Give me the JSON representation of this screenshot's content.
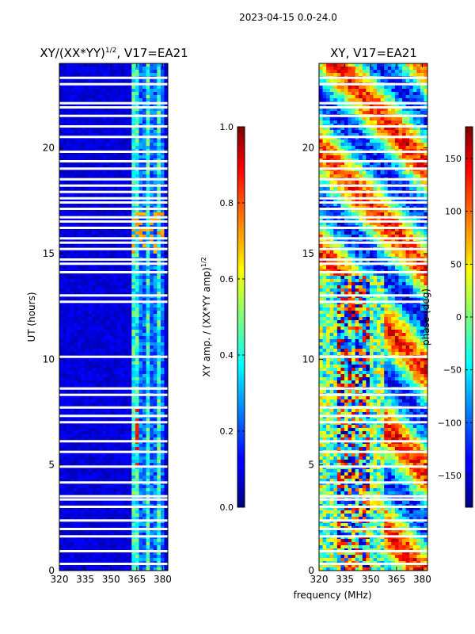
{
  "suptitle": "2023-04-15 0.0-24.0",
  "chart_data": [
    {
      "type": "heatmap",
      "title": "XY/(XX*YY)^1/2, V17=EA21",
      "title_main": "XY/(XX*YY)",
      "title_sup": "1/2",
      "title_tail": ", V17=EA21",
      "xlabel": "",
      "ylabel": "UT (hours)",
      "xlim": [
        320,
        383
      ],
      "ylim": [
        0,
        24
      ],
      "xticks": [
        "320",
        "335",
        "350",
        "365",
        "380"
      ],
      "yticks": [
        "0",
        "5",
        "10",
        "15",
        "20"
      ],
      "grid": false,
      "colorbar": {
        "label_main": "XY amp. / (XX*YY amp)",
        "label_sup": "1/2",
        "range": [
          0.0,
          1.0
        ],
        "ticks": [
          "0.0",
          "0.2",
          "0.4",
          "0.6",
          "0.8",
          "1.0"
        ]
      }
    },
    {
      "type": "heatmap",
      "title": "XY, V17=EA21",
      "xlabel": "frequency (MHz)",
      "ylabel": "",
      "xlim": [
        320,
        383
      ],
      "ylim": [
        0,
        24
      ],
      "xticks": [
        "320",
        "335",
        "350",
        "365",
        "380"
      ],
      "yticks": [
        "0",
        "5",
        "10",
        "15",
        "20"
      ],
      "grid": false,
      "colorbar": {
        "label": "phase (deg)",
        "range": [
          -180,
          180
        ],
        "ticks": [
          "−150",
          "−100",
          "−50",
          "0",
          "50",
          "100",
          "150"
        ]
      }
    }
  ],
  "flagged_hours": [
    0.3,
    0.9,
    1.6,
    1.95,
    2.35,
    3.0,
    3.35,
    3.5,
    4.15,
    4.9,
    5.6,
    6.1,
    7.0,
    7.3,
    7.7,
    8.3,
    8.6,
    10.1,
    12.7,
    13.0,
    14.1,
    14.5,
    14.7,
    15.2,
    15.5,
    15.7,
    16.2,
    16.5,
    16.7,
    17.1,
    17.4,
    17.6,
    17.9,
    18.2,
    18.5,
    19.0,
    19.35,
    19.8,
    20.5,
    21.0,
    21.5,
    21.9,
    22.1,
    23.0,
    23.3
  ]
}
